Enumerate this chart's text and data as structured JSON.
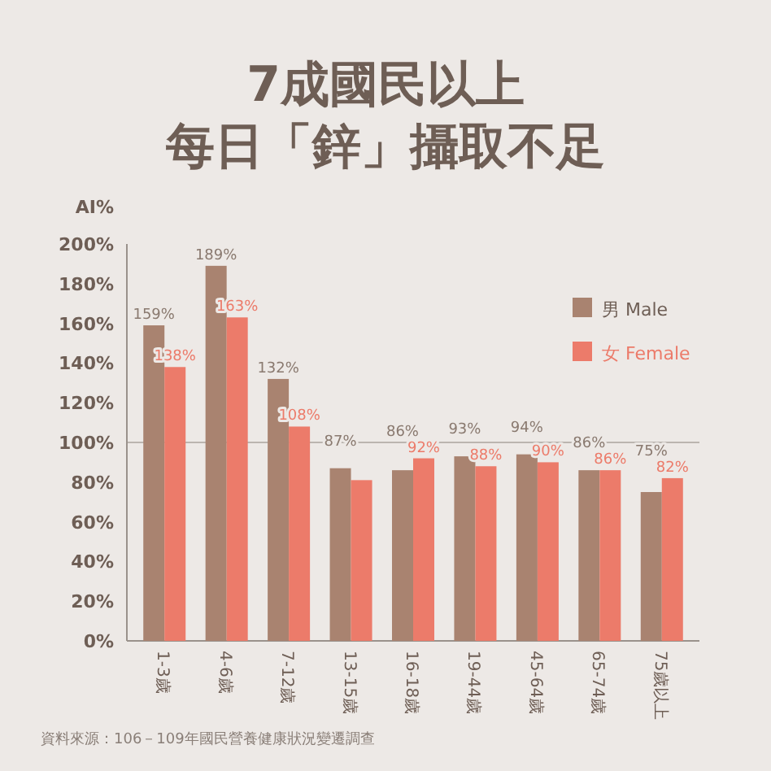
{
  "chart_data": {
    "type": "bar",
    "title": "7成國民以上",
    "subtitle": "每日「鋅」攝取不足",
    "ylabel": "AI%",
    "categories": [
      "1-3歲",
      "4-6歲",
      "7-12歲",
      "13-15歲",
      "16-18歲",
      "19-44歲",
      "45-64歲",
      "65-74歲",
      "75歲以上"
    ],
    "series": [
      {
        "name": "男 Male",
        "color": "#a98370",
        "values": [
          159,
          189,
          132,
          87,
          86,
          93,
          94,
          86,
          75
        ],
        "value_labels": [
          "159%",
          "189%",
          "132%",
          "87%",
          "86%",
          "93%",
          "94%",
          "86%",
          "75%"
        ]
      },
      {
        "name": "女 Female",
        "color": "#ec7b6a",
        "values": [
          138,
          163,
          108,
          81,
          92,
          88,
          90,
          86,
          82
        ],
        "value_labels": [
          "138%",
          "163%",
          "108%",
          null,
          "92%",
          "88%",
          "90%",
          "86%",
          "82%"
        ]
      }
    ],
    "ylim": [
      0,
      200
    ],
    "yticks": [
      {
        "value": 0,
        "label": "0%"
      },
      {
        "value": 20,
        "label": "20%"
      },
      {
        "value": 40,
        "label": "40%"
      },
      {
        "value": 60,
        "label": "60%"
      },
      {
        "value": 80,
        "label": "80%"
      },
      {
        "value": 100,
        "label": "100%"
      },
      {
        "value": 120,
        "label": "120%"
      },
      {
        "value": 140,
        "label": "140%"
      },
      {
        "value": 160,
        "label": "160%"
      },
      {
        "value": 180,
        "label": "180%"
      },
      {
        "value": 200,
        "label": "200%"
      }
    ],
    "ref_lines": [
      {
        "axis": "y",
        "value": 100,
        "color": "#bbb5b0"
      }
    ],
    "legend": "right",
    "grid": false,
    "annotations": [
      "資料來源：106－109年國民營養健康狀況變遷調查"
    ]
  }
}
